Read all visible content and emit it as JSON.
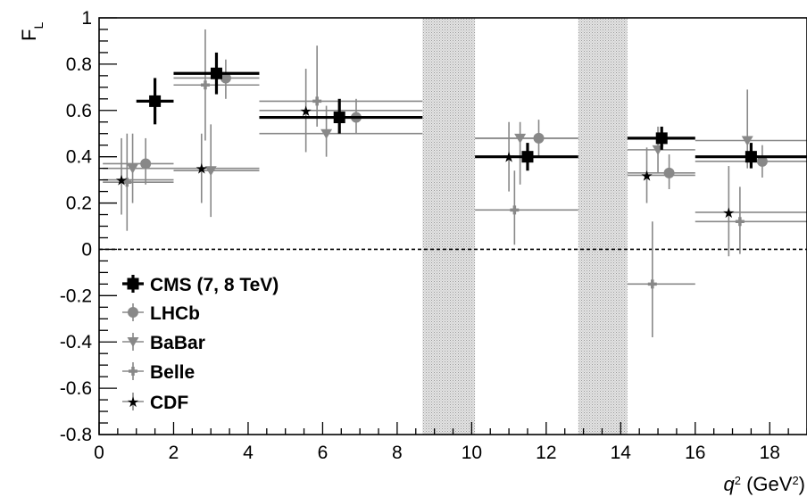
{
  "chart_data": {
    "type": "scatter",
    "title": "",
    "xlabel_main": "q",
    "xlabel_sup": "2",
    "xlabel_unit_open": " (GeV",
    "xlabel_unit_sup": "2",
    "xlabel_unit_close": ")",
    "ylabel_main": "F",
    "ylabel_sub": "L",
    "xlim": [
      0,
      19
    ],
    "ylim": [
      -0.8,
      1.0
    ],
    "x_ticks": [
      0,
      2,
      4,
      6,
      8,
      10,
      12,
      14,
      16,
      18
    ],
    "x_tick_labels": [
      "0",
      "2",
      "4",
      "6",
      "8",
      "10",
      "12",
      "14",
      "16",
      "18"
    ],
    "y_ticks": [
      -0.8,
      -0.6,
      -0.4,
      -0.2,
      0,
      0.2,
      0.4,
      0.6,
      0.8,
      1
    ],
    "y_tick_labels": [
      "-0.8",
      "-0.6",
      "-0.4",
      "-0.2",
      "0",
      "0.2",
      "0.4",
      "0.6",
      "0.8",
      "1"
    ],
    "zero_line": true,
    "grid": false,
    "legend_position": "bottom-left",
    "vetoed_bands": [
      [
        8.68,
        10.09
      ],
      [
        12.86,
        14.18
      ]
    ],
    "series": [
      {
        "name": "CMS (7, 8 TeV)",
        "marker": "square",
        "color": "#000000",
        "points": [
          {
            "x": 1.5,
            "y": 0.64,
            "xlo": 1.0,
            "xhi": 2.0,
            "elo": 0.1,
            "ehi": 0.1
          },
          {
            "x": 3.15,
            "y": 0.76,
            "xlo": 2.0,
            "xhi": 4.3,
            "elo": 0.09,
            "ehi": 0.09
          },
          {
            "x": 6.45,
            "y": 0.57,
            "xlo": 4.3,
            "xhi": 8.68,
            "elo": 0.07,
            "ehi": 0.08
          },
          {
            "x": 11.5,
            "y": 0.4,
            "xlo": 10.09,
            "xhi": 12.86,
            "elo": 0.06,
            "ehi": 0.06
          },
          {
            "x": 15.1,
            "y": 0.48,
            "xlo": 14.18,
            "xhi": 16.0,
            "elo": 0.05,
            "ehi": 0.05
          },
          {
            "x": 17.5,
            "y": 0.4,
            "xlo": 16.0,
            "xhi": 19.0,
            "elo": 0.05,
            "ehi": 0.06
          }
        ]
      },
      {
        "name": "LHCb",
        "marker": "circle",
        "color": "#888888",
        "points": [
          {
            "x": 1.25,
            "y": 0.37,
            "xlo": 0.1,
            "xhi": 2.0,
            "elo": 0.09,
            "ehi": 0.11
          },
          {
            "x": 3.4,
            "y": 0.74,
            "xlo": 2.0,
            "xhi": 4.3,
            "elo": 0.09,
            "ehi": 0.08
          },
          {
            "x": 6.9,
            "y": 0.57,
            "xlo": 4.3,
            "xhi": 8.68,
            "elo": 0.07,
            "ehi": 0.08
          },
          {
            "x": 11.8,
            "y": 0.48,
            "xlo": 10.09,
            "xhi": 12.86,
            "elo": 0.08,
            "ehi": 0.08
          },
          {
            "x": 15.3,
            "y": 0.33,
            "xlo": 14.18,
            "xhi": 16.0,
            "elo": 0.07,
            "ehi": 0.08
          },
          {
            "x": 17.8,
            "y": 0.38,
            "xlo": 16.0,
            "xhi": 19.0,
            "elo": 0.07,
            "ehi": 0.07
          }
        ]
      },
      {
        "name": "BaBar",
        "marker": "triangle-down",
        "color": "#888888",
        "points": [
          {
            "x": 0.9,
            "y": 0.35,
            "xlo": 0.1,
            "xhi": 2.0,
            "elo": 0.15,
            "ehi": 0.15
          },
          {
            "x": 3.0,
            "y": 0.34,
            "xlo": 2.0,
            "xhi": 4.3,
            "elo": 0.2,
            "ehi": 0.2
          },
          {
            "x": 6.1,
            "y": 0.5,
            "xlo": 4.3,
            "xhi": 8.68,
            "elo": 0.1,
            "ehi": 0.12
          },
          {
            "x": 11.3,
            "y": 0.48,
            "xlo": 10.09,
            "xhi": 12.86,
            "elo": 0.2,
            "ehi": 0.07
          },
          {
            "x": 15.0,
            "y": 0.43,
            "xlo": 14.18,
            "xhi": 16.0,
            "elo": 0.1,
            "ehi": 0.1
          },
          {
            "x": 17.4,
            "y": 0.47,
            "xlo": 16.0,
            "xhi": 19.0,
            "elo": 0.12,
            "ehi": 0.22
          }
        ]
      },
      {
        "name": "Belle",
        "marker": "cross",
        "color": "#888888",
        "points": [
          {
            "x": 0.75,
            "y": 0.29,
            "xlo": 0.1,
            "xhi": 2.0,
            "elo": 0.21,
            "ehi": 0.21
          },
          {
            "x": 2.85,
            "y": 0.71,
            "xlo": 2.0,
            "xhi": 4.3,
            "elo": 0.24,
            "ehi": 0.24
          },
          {
            "x": 5.85,
            "y": 0.64,
            "xlo": 4.3,
            "xhi": 8.68,
            "elo": 0.11,
            "ehi": 0.24
          },
          {
            "x": 11.15,
            "y": 0.17,
            "xlo": 10.09,
            "xhi": 12.86,
            "elo": 0.15,
            "ehi": 0.17
          },
          {
            "x": 14.85,
            "y": -0.15,
            "xlo": 14.18,
            "xhi": 16.0,
            "elo": 0.23,
            "ehi": 0.27
          },
          {
            "x": 17.2,
            "y": 0.12,
            "xlo": 16.0,
            "xhi": 19.0,
            "elo": 0.14,
            "ehi": 0.15
          }
        ]
      },
      {
        "name": "CDF",
        "marker": "star",
        "color": "#888888",
        "points": [
          {
            "x": 0.6,
            "y": 0.3,
            "xlo": 0.1,
            "xhi": 2.0,
            "elo": 0.15,
            "ehi": 0.18
          },
          {
            "x": 2.75,
            "y": 0.35,
            "xlo": 2.0,
            "xhi": 4.3,
            "elo": 0.15,
            "ehi": 0.15
          },
          {
            "x": 5.55,
            "y": 0.6,
            "xlo": 4.3,
            "xhi": 8.68,
            "elo": 0.18,
            "ehi": 0.18
          },
          {
            "x": 11.0,
            "y": 0.4,
            "xlo": 10.09,
            "xhi": 12.86,
            "elo": 0.15,
            "ehi": 0.15
          },
          {
            "x": 14.7,
            "y": 0.32,
            "xlo": 14.18,
            "xhi": 16.0,
            "elo": 0.12,
            "ehi": 0.12
          },
          {
            "x": 16.9,
            "y": 0.16,
            "xlo": 16.0,
            "xhi": 19.0,
            "elo": 0.19,
            "ehi": 0.2
          }
        ]
      }
    ]
  }
}
